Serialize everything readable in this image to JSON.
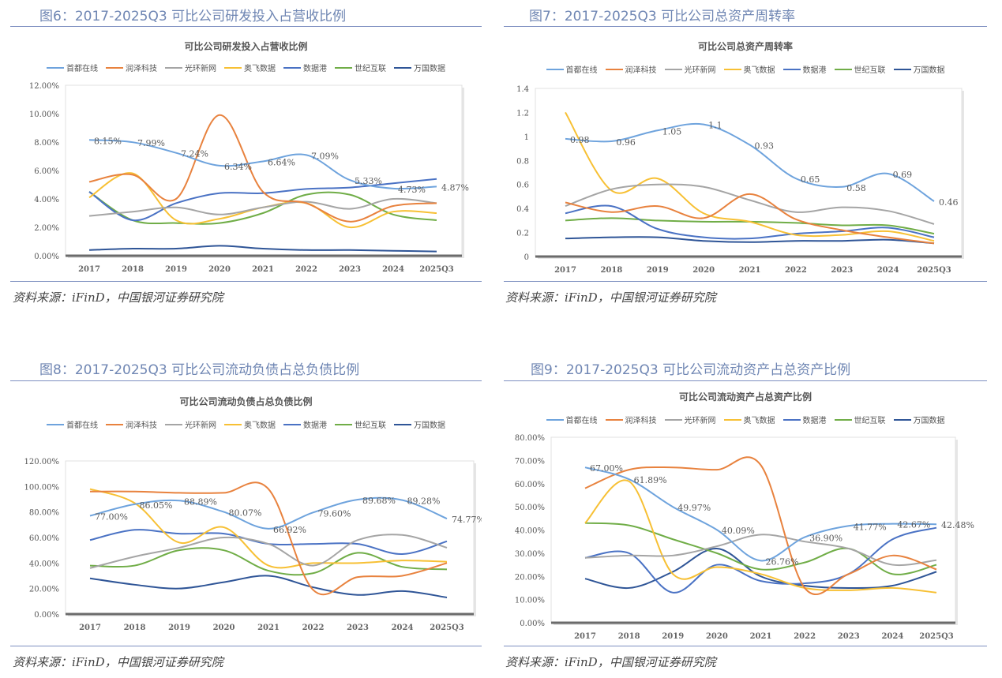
{
  "source_text": "资料来源：iFinD，中国银河证券研究院",
  "legend_names": [
    "首都在线",
    "润泽科技",
    "光环新网",
    "奥飞数据",
    "数据港",
    "世纪互联",
    "万国数据"
  ],
  "series_colors": [
    "#6ea3dd",
    "#e8823e",
    "#a5a5a5",
    "#f7c034",
    "#4a72c4",
    "#70ad47",
    "#2f5597"
  ],
  "chart_data": [
    {
      "type": "line",
      "figure_title": "图6：2017-2025Q3 可比公司研发投入占营收比例",
      "title": "可比公司研发投入占营收比例",
      "categories": [
        "2017",
        "2018",
        "2019",
        "2020",
        "2021",
        "2022",
        "2023",
        "2024",
        "2025Q3"
      ],
      "ylim": [
        0,
        12
      ],
      "yticks": [
        "0.00%",
        "2.00%",
        "4.00%",
        "6.00%",
        "8.00%",
        "10.00%",
        "12.00%"
      ],
      "ytick_values": [
        0,
        2,
        4,
        6,
        8,
        10,
        12
      ],
      "legend_position": "top",
      "grid": false,
      "series": [
        {
          "name": "首都在线",
          "values": [
            8.15,
            7.99,
            7.24,
            6.34,
            6.64,
            7.09,
            5.33,
            4.73,
            4.87
          ],
          "labels": [
            "8.15%",
            "7.99%",
            "7.24%",
            "6.34%",
            "6.64%",
            "7.09%",
            "5.33%",
            "4.73%",
            "4.87%"
          ]
        },
        {
          "name": "润泽科技",
          "values": [
            5.2,
            5.7,
            4.0,
            9.9,
            4.5,
            3.7,
            2.4,
            3.5,
            3.7
          ]
        },
        {
          "name": "光环新网",
          "values": [
            2.8,
            3.1,
            3.4,
            2.9,
            3.4,
            3.8,
            3.3,
            4.0,
            3.7
          ]
        },
        {
          "name": "奥飞数据",
          "values": [
            4.1,
            5.8,
            2.5,
            2.6,
            3.4,
            3.7,
            2.0,
            3.1,
            3.0
          ]
        },
        {
          "name": "数据港",
          "values": [
            4.5,
            2.5,
            3.7,
            4.4,
            4.4,
            4.7,
            4.8,
            5.1,
            5.4
          ]
        },
        {
          "name": "世纪互联",
          "values": [
            4.5,
            2.5,
            2.3,
            2.3,
            3.0,
            4.3,
            4.3,
            2.9,
            2.5
          ]
        },
        {
          "name": "万国数据",
          "values": [
            0.4,
            0.5,
            0.5,
            0.7,
            0.5,
            0.4,
            0.4,
            0.35,
            0.3
          ]
        }
      ]
    },
    {
      "type": "line",
      "figure_title": "图7：2017-2025Q3 可比公司总资产周转率",
      "title": "可比公司总资产周转率",
      "categories": [
        "2017",
        "2018",
        "2019",
        "2020",
        "2021",
        "2022",
        "2023",
        "2024",
        "2025Q3"
      ],
      "ylim": [
        0,
        1.4
      ],
      "yticks": [
        "0",
        "0.2",
        "0.4",
        "0.6",
        "0.8",
        "1",
        "1.2",
        "1.4"
      ],
      "ytick_values": [
        0,
        0.2,
        0.4,
        0.6,
        0.8,
        1,
        1.2,
        1.4
      ],
      "legend_position": "top",
      "grid": false,
      "series": [
        {
          "name": "首都在线",
          "values": [
            0.98,
            0.96,
            1.05,
            1.1,
            0.93,
            0.65,
            0.58,
            0.69,
            0.46
          ],
          "labels": [
            "0.98",
            "0.96",
            "1.05",
            "1.1",
            "0.93",
            "0.65",
            "0.58",
            "0.69",
            "0.46"
          ]
        },
        {
          "name": "润泽科技",
          "values": [
            0.45,
            0.37,
            0.42,
            0.32,
            0.52,
            0.31,
            0.22,
            0.16,
            0.11
          ]
        },
        {
          "name": "光环新网",
          "values": [
            0.42,
            0.56,
            0.6,
            0.58,
            0.47,
            0.37,
            0.41,
            0.38,
            0.27
          ]
        },
        {
          "name": "奥飞数据",
          "values": [
            1.2,
            0.55,
            0.65,
            0.36,
            0.29,
            0.18,
            0.18,
            0.21,
            0.13
          ]
        },
        {
          "name": "数据港",
          "values": [
            0.36,
            0.42,
            0.23,
            0.16,
            0.15,
            0.19,
            0.21,
            0.24,
            0.16
          ]
        },
        {
          "name": "世纪互联",
          "values": [
            0.3,
            0.32,
            0.3,
            0.29,
            0.29,
            0.28,
            0.26,
            0.26,
            0.19
          ]
        },
        {
          "name": "万国数据",
          "values": [
            0.15,
            0.16,
            0.16,
            0.13,
            0.12,
            0.13,
            0.13,
            0.14,
            0.11
          ]
        }
      ]
    },
    {
      "type": "line",
      "figure_title": "图8：2017-2025Q3 可比公司流动负债占总负债比例",
      "title": "可比公司流动负债占总负债比例",
      "categories": [
        "2017",
        "2018",
        "2019",
        "2020",
        "2021",
        "2022",
        "2023",
        "2024",
        "2025Q3"
      ],
      "ylim": [
        0,
        120
      ],
      "yticks": [
        "0.00%",
        "20.00%",
        "40.00%",
        "60.00%",
        "80.00%",
        "100.00%",
        "120.00%"
      ],
      "ytick_values": [
        0,
        20,
        40,
        60,
        80,
        100,
        120
      ],
      "legend_position": "top",
      "grid": false,
      "series": [
        {
          "name": "首都在线",
          "values": [
            77.0,
            86.05,
            88.89,
            80.07,
            66.92,
            79.6,
            89.68,
            89.28,
            74.77
          ],
          "labels": [
            "77.00%",
            "86.05%",
            "88.89%",
            "80.07%",
            "66.92%",
            "79.60%",
            "89.68%",
            "89.28%",
            "74.77%"
          ]
        },
        {
          "name": "润泽科技",
          "values": [
            96,
            96,
            95,
            95,
            98,
            19,
            29,
            30,
            40
          ]
        },
        {
          "name": "光环新网",
          "values": [
            36,
            45,
            52,
            60,
            55,
            38,
            58,
            62,
            52
          ]
        },
        {
          "name": "奥飞数据",
          "values": [
            98,
            87,
            56,
            68,
            38,
            40,
            40,
            42,
            41
          ]
        },
        {
          "name": "数据港",
          "values": [
            58,
            66,
            63,
            63,
            55,
            55,
            55,
            47,
            57
          ]
        },
        {
          "name": "世纪互联",
          "values": [
            38,
            38,
            50,
            50,
            34,
            32,
            48,
            37,
            35
          ]
        },
        {
          "name": "万国数据",
          "values": [
            28,
            23,
            20,
            25,
            30,
            21,
            15,
            18,
            13
          ]
        }
      ]
    },
    {
      "type": "line",
      "figure_title": "图9：2017-2025Q3 可比公司流动资产占总资产比例",
      "title": "可比公司流动资产占总资产比例",
      "categories": [
        "2017",
        "2018",
        "2019",
        "2020",
        "2021",
        "2022",
        "2023",
        "2024",
        "2025Q3"
      ],
      "ylim": [
        0,
        80
      ],
      "yticks": [
        "0.00%",
        "10.00%",
        "20.00%",
        "30.00%",
        "40.00%",
        "50.00%",
        "60.00%",
        "70.00%",
        "80.00%"
      ],
      "ytick_values": [
        0,
        10,
        20,
        30,
        40,
        50,
        60,
        70,
        80
      ],
      "legend_position": "top",
      "grid": false,
      "series": [
        {
          "name": "首都在线",
          "values": [
            67.0,
            61.89,
            49.97,
            40.09,
            26.76,
            36.9,
            41.77,
            42.67,
            42.48
          ],
          "labels": [
            "67.00%",
            "61.89%",
            "49.97%",
            "40.09%",
            "26.76%",
            "36.90%",
            "41.77%",
            "42.67%",
            "42.48%"
          ]
        },
        {
          "name": "润泽科技",
          "values": [
            58,
            66,
            67,
            66,
            68,
            15,
            21,
            29,
            23
          ]
        },
        {
          "name": "光环新网",
          "values": [
            28,
            29,
            29,
            33,
            38,
            35,
            32,
            25,
            27
          ]
        },
        {
          "name": "奥飞数据",
          "values": [
            43,
            61,
            21,
            24,
            21,
            15,
            14,
            15,
            13
          ]
        },
        {
          "name": "数据港",
          "values": [
            28,
            30,
            13,
            25,
            18,
            17,
            21,
            36,
            41
          ]
        },
        {
          "name": "世纪互联",
          "values": [
            43,
            42,
            36,
            30,
            23,
            26,
            32,
            21,
            25
          ]
        },
        {
          "name": "万国数据",
          "values": [
            19,
            15,
            22,
            32,
            20,
            16,
            15,
            16,
            22
          ]
        }
      ]
    }
  ]
}
